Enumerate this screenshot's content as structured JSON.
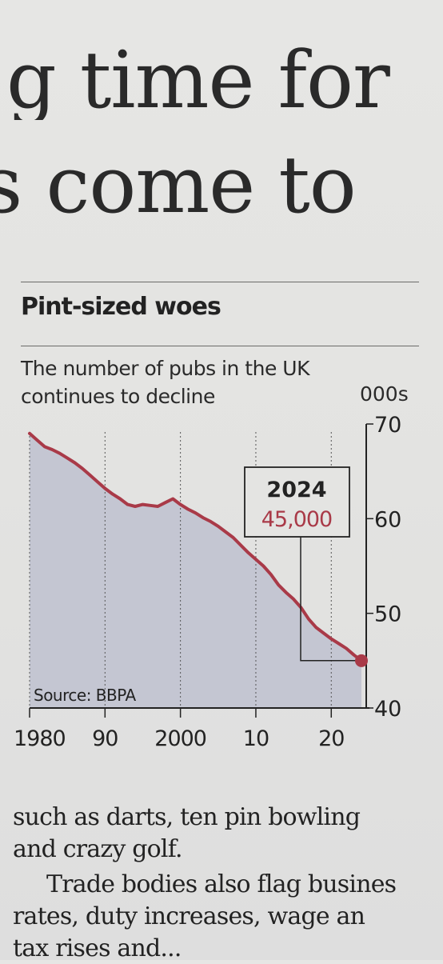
{
  "headline": {
    "line1": "g time for",
    "line2": "s come to"
  },
  "chart_data": {
    "type": "area",
    "title": "Pint-sized woes",
    "subtitle": "The number of pubs in the UK continues to decline",
    "unit": "000s",
    "source": "Source: BBPA",
    "x": [
      1980,
      1981,
      1982,
      1983,
      1984,
      1985,
      1986,
      1987,
      1988,
      1989,
      1990,
      1991,
      1992,
      1993,
      1994,
      1995,
      1996,
      1997,
      1998,
      1999,
      2000,
      2001,
      2002,
      2003,
      2004,
      2005,
      2006,
      2007,
      2008,
      2009,
      2010,
      2011,
      2012,
      2013,
      2014,
      2015,
      2016,
      2017,
      2018,
      2019,
      2020,
      2021,
      2022,
      2023,
      2024
    ],
    "y": [
      69.0,
      68.3,
      67.6,
      67.3,
      66.9,
      66.4,
      65.9,
      65.3,
      64.6,
      63.9,
      63.2,
      62.6,
      62.1,
      61.5,
      61.3,
      61.5,
      61.4,
      61.3,
      61.7,
      62.1,
      61.5,
      61.0,
      60.6,
      60.1,
      59.7,
      59.2,
      58.6,
      58.0,
      57.2,
      56.4,
      55.7,
      55.0,
      54.1,
      53.0,
      52.2,
      51.5,
      50.6,
      49.4,
      48.5,
      47.9,
      47.3,
      46.8,
      46.3,
      45.6,
      45.0
    ],
    "xlim": [
      1980,
      2024
    ],
    "ylim": [
      40,
      70
    ],
    "y_ticks": [
      70,
      60,
      50,
      40
    ],
    "x_ticks": [
      1980,
      1990,
      2000,
      2010,
      2020
    ],
    "x_tick_labels": [
      "1980",
      "90",
      "2000",
      "10",
      "20"
    ],
    "annotation": {
      "year_label": "2024",
      "value_label": "45,000",
      "x": 2024,
      "y": 45.0
    },
    "colors": {
      "line": "#a93a48",
      "fill": "#c4c6d2",
      "text": "#222222",
      "annotation_value": "#a93a48"
    },
    "grid": "vertical dotted at decades",
    "axis_position": "right"
  },
  "body": {
    "p1_line1": "such as darts, ten pin bowling",
    "p1_line2": "and crazy golf.",
    "p2_line1": "Trade bodies also flag busines",
    "p2_line2": "rates, duty increases, wage an",
    "p2_line3": "tax rises and..."
  }
}
